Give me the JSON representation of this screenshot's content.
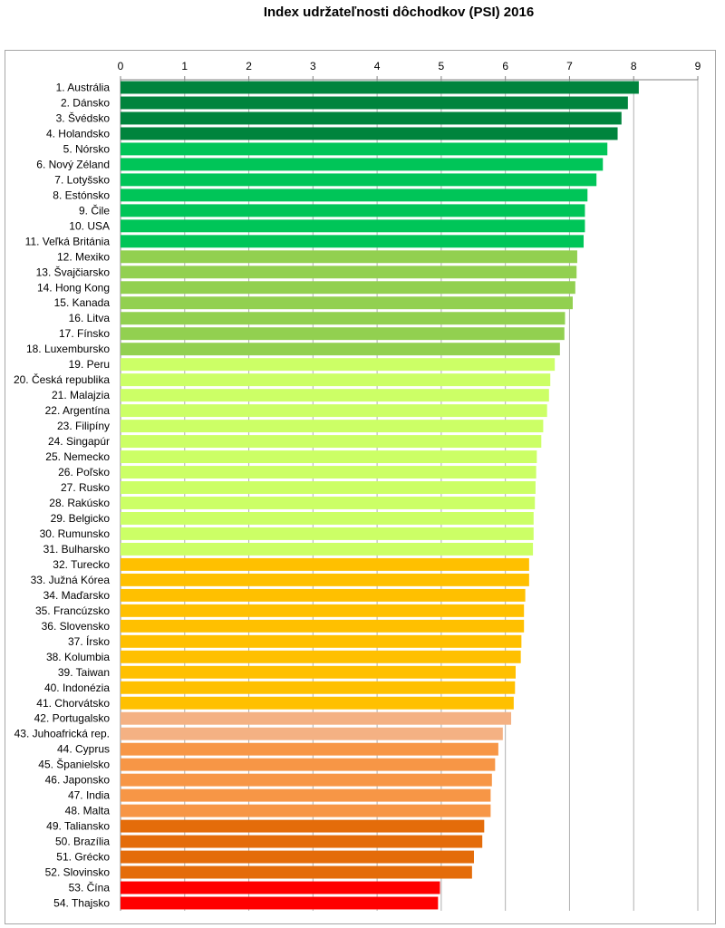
{
  "chart_data": {
    "type": "bar",
    "orientation": "horizontal",
    "title": "Index udržateľnosti dôchodkov (PSI) 2016",
    "xlabel": "",
    "ylabel": "",
    "xlim": [
      0,
      9
    ],
    "x_ticks": [
      "0",
      "1",
      "2",
      "3",
      "4",
      "5",
      "6",
      "7",
      "8",
      "9"
    ],
    "axis_position": "top",
    "grid": true,
    "legend": "none",
    "categories": [
      "1. Austrália",
      "2. Dánsko",
      "3. Švédsko",
      "4. Holandsko",
      "5. Nórsko",
      "6. Nový Zéland",
      "7. Lotyšsko",
      "8. Estónsko",
      "9. Čile",
      "10. USA",
      "11. Veľká Británia",
      "12. Mexiko",
      "13. Švajčiarsko",
      "14. Hong Kong",
      "15. Kanada",
      "16. Litva",
      "17. Fínsko",
      "18. Luxembursko",
      "19. Peru",
      "20. Česká republika",
      "21. Malajzia",
      "22. Argentína",
      "23. Filipíny",
      "24. Singapúr",
      "25. Nemecko",
      "26. Poľsko",
      "27. Rusko",
      "28. Rakúsko",
      "29. Belgicko",
      "30. Rumunsko",
      "31. Bulharsko",
      "32. Turecko",
      "33. Južná Kórea",
      "34. Maďarsko",
      "35. Francúzsko",
      "36. Slovensko",
      "37. Írsko",
      "38. Kolumbia",
      "39. Taiwan",
      "40. Indonézia",
      "41. Chorvátsko",
      "42. Portugalsko",
      "43. Juhoafrická rep.",
      "44. Cyprus",
      "45. Španielsko",
      "46. Japonsko",
      "47. India",
      "48. Malta",
      "49. Taliansko",
      "50. Brazília",
      "51. Grécko",
      "52. Slovinsko",
      "53. Čína",
      "54. Thajsko"
    ],
    "values": [
      8.08,
      7.91,
      7.81,
      7.75,
      7.59,
      7.52,
      7.42,
      7.28,
      7.24,
      7.24,
      7.22,
      7.12,
      7.11,
      7.09,
      7.05,
      6.93,
      6.92,
      6.85,
      6.77,
      6.7,
      6.68,
      6.65,
      6.59,
      6.56,
      6.49,
      6.48,
      6.47,
      6.46,
      6.44,
      6.44,
      6.43,
      6.37,
      6.37,
      6.31,
      6.29,
      6.29,
      6.25,
      6.24,
      6.16,
      6.15,
      6.13,
      6.09,
      5.96,
      5.89,
      5.84,
      5.79,
      5.77,
      5.77,
      5.67,
      5.64,
      5.51,
      5.48,
      4.98,
      4.95
    ],
    "colors": [
      "#00843d",
      "#00843d",
      "#00843d",
      "#00843d",
      "#00c558",
      "#00c558",
      "#00c558",
      "#00c558",
      "#00c558",
      "#00c558",
      "#00c558",
      "#92d050",
      "#92d050",
      "#92d050",
      "#92d050",
      "#92d050",
      "#92d050",
      "#92d050",
      "#ccff66",
      "#ccff66",
      "#ccff66",
      "#ccff66",
      "#ccff66",
      "#ccff66",
      "#ccff66",
      "#ccff66",
      "#ccff66",
      "#ccff66",
      "#ccff66",
      "#ccff66",
      "#ccff66",
      "#ffc000",
      "#ffc000",
      "#ffc000",
      "#ffc000",
      "#ffc000",
      "#ffc000",
      "#ffc000",
      "#ffc000",
      "#ffc000",
      "#ffc000",
      "#f4b183",
      "#f4b183",
      "#f79646",
      "#f79646",
      "#f79646",
      "#f79646",
      "#f79646",
      "#e46c0a",
      "#e46c0a",
      "#e46c0a",
      "#e46c0a",
      "#ff0000",
      "#ff0000"
    ]
  }
}
